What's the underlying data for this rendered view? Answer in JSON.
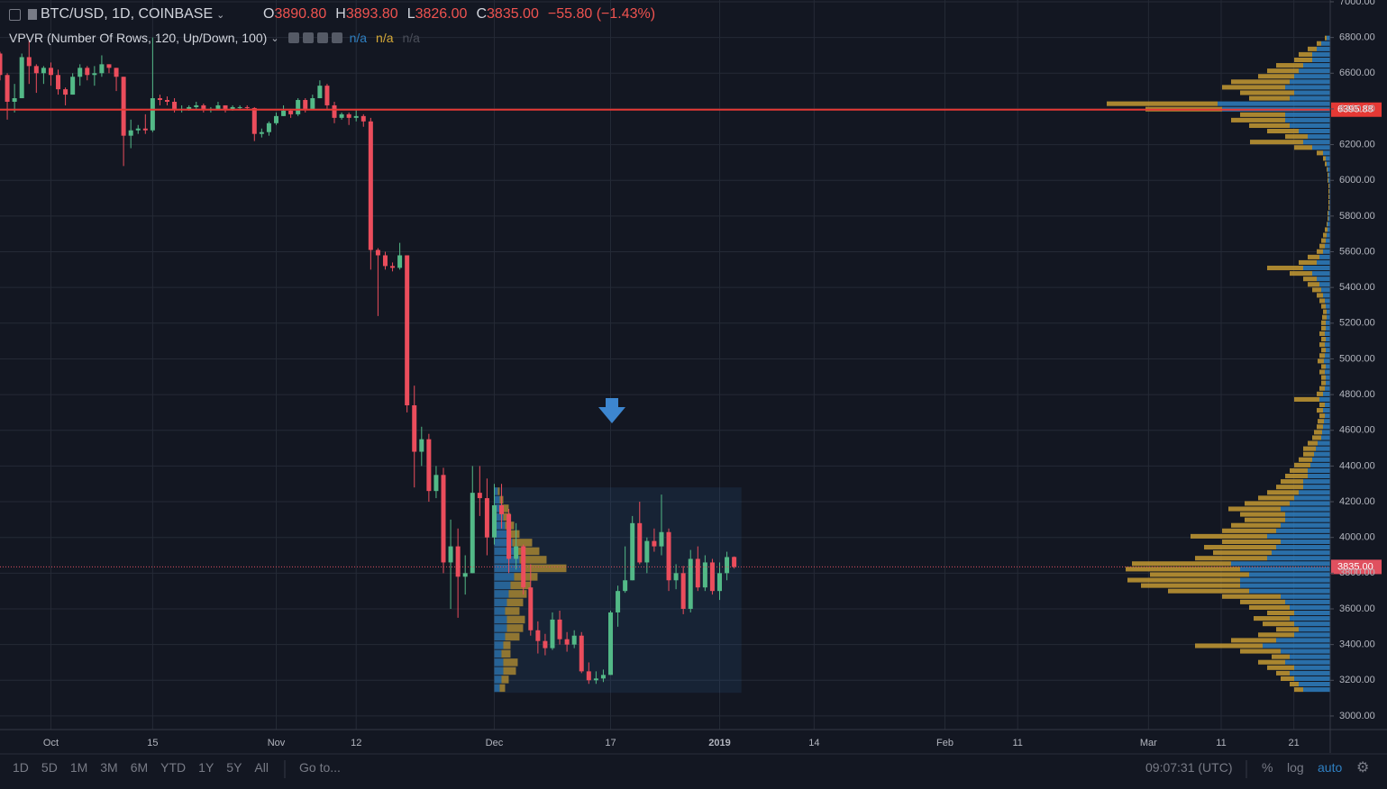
{
  "header": {
    "symbol": "BTC/USD, 1D, COINBASE",
    "ohlc": [
      {
        "key": "O",
        "value": "3890.80"
      },
      {
        "key": "H",
        "value": "3893.80"
      },
      {
        "key": "L",
        "value": "3826.00"
      },
      {
        "key": "C",
        "value": "3835.00"
      }
    ],
    "change": "−55.80 (−1.43%)",
    "indicator": "VPVR (Number Of Rows, 120, Up/Down, 100)",
    "indicator_values": [
      {
        "text": "n/a",
        "color": "#2f7fc1"
      },
      {
        "text": "n/a",
        "color": "#d6a937"
      },
      {
        "text": "n/a",
        "color": "#4a4e59"
      }
    ]
  },
  "toolbar": {
    "ranges": [
      "1D",
      "5D",
      "1M",
      "3M",
      "6M",
      "YTD",
      "1Y",
      "5Y",
      "All"
    ],
    "goto": "Go to...",
    "time": "09:07:31 (UTC)",
    "percent": "%",
    "log": "log",
    "auto": "auto"
  },
  "chart_data": {
    "type": "candlestick",
    "x": [
      "2018-09-24",
      "2018-09-25",
      "2018-09-26",
      "2018-09-27",
      "2018-09-28",
      "2018-09-29",
      "2018-09-30",
      "2018-10-01",
      "2018-10-02",
      "2018-10-03",
      "2018-10-04",
      "2018-10-05",
      "2018-10-06",
      "2018-10-07",
      "2018-10-08",
      "2018-10-09",
      "2018-10-10",
      "2018-10-11",
      "2018-10-12",
      "2018-10-13",
      "2018-10-14",
      "2018-10-15",
      "2018-10-16",
      "2018-10-17",
      "2018-10-18",
      "2018-10-19",
      "2018-10-20",
      "2018-10-21",
      "2018-10-22",
      "2018-10-23",
      "2018-10-24",
      "2018-10-25",
      "2018-10-26",
      "2018-10-27",
      "2018-10-28",
      "2018-10-29",
      "2018-10-30",
      "2018-10-31",
      "2018-11-01",
      "2018-11-02",
      "2018-11-03",
      "2018-11-04",
      "2018-11-05",
      "2018-11-06",
      "2018-11-07",
      "2018-11-08",
      "2018-11-09",
      "2018-11-10",
      "2018-11-11",
      "2018-11-12",
      "2018-11-13",
      "2018-11-14",
      "2018-11-15",
      "2018-11-16",
      "2018-11-17",
      "2018-11-18",
      "2018-11-19",
      "2018-11-20",
      "2018-11-21",
      "2018-11-22",
      "2018-11-23",
      "2018-11-24",
      "2018-11-25",
      "2018-11-26",
      "2018-11-27",
      "2018-11-28",
      "2018-11-29",
      "2018-11-30",
      "2018-12-01",
      "2018-12-02",
      "2018-12-03",
      "2018-12-04",
      "2018-12-05",
      "2018-12-06",
      "2018-12-07",
      "2018-12-08",
      "2018-12-09",
      "2018-12-10",
      "2018-12-11",
      "2018-12-12",
      "2018-12-13",
      "2018-12-14",
      "2018-12-15",
      "2018-12-16",
      "2018-12-17",
      "2018-12-18",
      "2018-12-19",
      "2018-12-20",
      "2018-12-21",
      "2018-12-22",
      "2018-12-23",
      "2018-12-24",
      "2018-12-25",
      "2018-12-26",
      "2018-12-27",
      "2018-12-28",
      "2018-12-29",
      "2018-12-30",
      "2018-12-31",
      "2019-01-01",
      "2019-01-02",
      "2019-01-03"
    ],
    "open": [
      6710,
      6590,
      6440,
      6460,
      6690,
      6640,
      6600,
      6630,
      6590,
      6510,
      6480,
      6580,
      6630,
      6590,
      6600,
      6650,
      6630,
      6580,
      6250,
      6280,
      6290,
      6280,
      6460,
      6450,
      6440,
      6400,
      6400,
      6410,
      6420,
      6400,
      6400,
      6420,
      6400,
      6410,
      6410,
      6405,
      6260,
      6270,
      6320,
      6360,
      6390,
      6370,
      6450,
      6400,
      6460,
      6530,
      6420,
      6350,
      6370,
      6350,
      6360,
      6330,
      5610,
      5580,
      5520,
      5510,
      5580,
      4740,
      4480,
      4550,
      4260,
      4350,
      3860,
      3950,
      3780,
      3800,
      4250,
      4220,
      4000,
      4180,
      4130,
      3880,
      3950,
      3720,
      3480,
      3420,
      3380,
      3540,
      3430,
      3400,
      3450,
      3250,
      3200,
      3210,
      3230,
      3580,
      3700,
      3760,
      4080,
      3860,
      3980,
      3950,
      4030,
      3760,
      3800,
      3600,
      3880,
      3720,
      3860,
      3700,
      3800,
      3890.8
    ],
    "high": [
      6720,
      6600,
      6540,
      6710,
      6780,
      6650,
      6640,
      6660,
      6620,
      6520,
      6600,
      6650,
      6640,
      6640,
      6700,
      6650,
      6630,
      6580,
      6340,
      6310,
      6370,
      6800,
      6480,
      6470,
      6460,
      6420,
      6420,
      6440,
      6430,
      6410,
      6440,
      6420,
      6420,
      6420,
      6420,
      6410,
      6290,
      6330,
      6380,
      6420,
      6400,
      6460,
      6460,
      6480,
      6560,
      6540,
      6440,
      6380,
      6380,
      6400,
      6370,
      6350,
      5620,
      5600,
      5540,
      5650,
      5580,
      4850,
      4620,
      4580,
      4400,
      4390,
      4100,
      4050,
      3900,
      4400,
      4400,
      4330,
      4300,
      4300,
      4160,
      4080,
      3960,
      3850,
      3530,
      3460,
      3580,
      3590,
      3470,
      3480,
      3470,
      3300,
      3250,
      3260,
      3590,
      3730,
      3950,
      4120,
      4200,
      4000,
      4050,
      4240,
      4050,
      3850,
      3840,
      3930,
      3950,
      3900,
      3880,
      3860,
      3920,
      3893.8
    ],
    "low": [
      6560,
      6340,
      6380,
      6460,
      6540,
      6490,
      6540,
      6530,
      6480,
      6420,
      6480,
      6530,
      6560,
      6530,
      6580,
      6600,
      6500,
      6080,
      6180,
      6260,
      6260,
      6270,
      6420,
      6420,
      6380,
      6380,
      6390,
      6400,
      6380,
      6380,
      6400,
      6380,
      6390,
      6400,
      6400,
      6220,
      6240,
      6250,
      6310,
      6360,
      6350,
      6360,
      6380,
      6400,
      6460,
      6400,
      6320,
      6340,
      6310,
      6330,
      6300,
      5500,
      5240,
      5500,
      5490,
      5500,
      4700,
      4280,
      4400,
      4200,
      4220,
      3800,
      3600,
      3550,
      3680,
      3800,
      4120,
      3900,
      3960,
      4050,
      3800,
      3820,
      3680,
      3450,
      3350,
      3340,
      3370,
      3400,
      3360,
      3380,
      3240,
      3180,
      3180,
      3190,
      3230,
      3500,
      3690,
      3760,
      3850,
      3800,
      3920,
      3900,
      3700,
      3710,
      3570,
      3580,
      3700,
      3700,
      3680,
      3650,
      3760,
      3826
    ],
    "close": [
      6590,
      6440,
      6460,
      6690,
      6640,
      6600,
      6630,
      6590,
      6510,
      6480,
      6580,
      6630,
      6590,
      6600,
      6650,
      6630,
      6580,
      6250,
      6280,
      6290,
      6280,
      6460,
      6450,
      6440,
      6400,
      6400,
      6410,
      6420,
      6400,
      6400,
      6420,
      6400,
      6410,
      6410,
      6405,
      6260,
      6270,
      6320,
      6360,
      6390,
      6370,
      6450,
      6400,
      6460,
      6530,
      6420,
      6350,
      6370,
      6350,
      6360,
      6330,
      5610,
      5580,
      5520,
      5510,
      5580,
      4740,
      4480,
      4550,
      4260,
      4350,
      3860,
      3950,
      3780,
      3800,
      4250,
      4220,
      4000,
      4180,
      4130,
      3880,
      3950,
      3720,
      3480,
      3420,
      3380,
      3540,
      3430,
      3400,
      3450,
      3250,
      3200,
      3210,
      3230,
      3580,
      3700,
      3760,
      4080,
      3860,
      3980,
      3950,
      4030,
      3760,
      3800,
      3600,
      3880,
      3720,
      3860,
      3700,
      3800,
      3890,
      3835
    ],
    "up_color": "#53b987",
    "down_color": "#eb4d5c",
    "xlim": [
      "2018-09-24",
      "2019-03-26"
    ],
    "xticks": [
      {
        "value": "2018-10-01",
        "label": "Oct"
      },
      {
        "value": "2018-10-15",
        "label": "15"
      },
      {
        "value": "2018-11-01",
        "label": "Nov"
      },
      {
        "value": "2018-11-12",
        "label": "12"
      },
      {
        "value": "2018-12-01",
        "label": "Dec"
      },
      {
        "value": "2018-12-17",
        "label": "17"
      },
      {
        "value": "2019-01-01",
        "label": "2019"
      },
      {
        "value": "2019-01-14",
        "label": "14"
      },
      {
        "value": "2019-02-01",
        "label": "Feb"
      },
      {
        "value": "2019-02-11",
        "label": "11"
      },
      {
        "value": "2019-03-01",
        "label": "Mar"
      },
      {
        "value": "2019-03-11",
        "label": "11"
      },
      {
        "value": "2019-03-21",
        "label": "21"
      }
    ],
    "ylim": [
      2924,
      7010
    ],
    "yticks": [
      {
        "value": 3000,
        "label": "3000.00"
      },
      {
        "value": 3200,
        "label": "3200.00"
      },
      {
        "value": 3400,
        "label": "3400.00"
      },
      {
        "value": 3600,
        "label": "3600.00"
      },
      {
        "value": 3800,
        "label": "3800.00"
      },
      {
        "value": 4000,
        "label": "4000.00"
      },
      {
        "value": 4200,
        "label": "4200.00"
      },
      {
        "value": 4400,
        "label": "4400.00"
      },
      {
        "value": 4600,
        "label": "4600.00"
      },
      {
        "value": 4800,
        "label": "4800.00"
      },
      {
        "value": 5000,
        "label": "5000.00"
      },
      {
        "value": 5200,
        "label": "5200.00"
      },
      {
        "value": 5400,
        "label": "5400.00"
      },
      {
        "value": 5600,
        "label": "5600.00"
      },
      {
        "value": 5800,
        "label": "5800.00"
      },
      {
        "value": 6000,
        "label": "6000.00"
      },
      {
        "value": 6200,
        "label": "6200.00"
      },
      {
        "value": 6400,
        "label": "6400.00"
      },
      {
        "value": 6600,
        "label": "6600.00"
      },
      {
        "value": 6800,
        "label": "6800.00"
      },
      {
        "value": 7000,
        "label": "7000.00"
      }
    ],
    "grid": true,
    "volume_profile": {
      "price_range": [
        3130,
        6810
      ],
      "series": [
        {
          "color": "#2f7fc1",
          "values": [
            30,
            35,
            40,
            45,
            40,
            50,
            45,
            55,
            75,
            60,
            40,
            35,
            40,
            45,
            40,
            45,
            50,
            55,
            90,
            100,
            100,
            90,
            100,
            110,
            70,
            65,
            60,
            55,
            70,
            60,
            55,
            50,
            50,
            55,
            45,
            40,
            35,
            30,
            30,
            25,
            25,
            22,
            20,
            18,
            16,
            14,
            10,
            9,
            8,
            7,
            6,
            8,
            6,
            12,
            8,
            6,
            5,
            5,
            6,
            5,
            7,
            6,
            5,
            6,
            5,
            6,
            5,
            5,
            4,
            4,
            5,
            6,
            8,
            10,
            12,
            15,
            20,
            30,
            15,
            12,
            8,
            6,
            5,
            4,
            3,
            3,
            2,
            2,
            1,
            1,
            1,
            1,
            1,
            2,
            2,
            3,
            4,
            5,
            8,
            20,
            30,
            25,
            35,
            45,
            50,
            50,
            120,
            125,
            45,
            40,
            50,
            45,
            40,
            35,
            30,
            20,
            20,
            15,
            10,
            4
          ]
        },
        {
          "color": "#c59a32",
          "values": [
            10,
            10,
            15,
            15,
            30,
            30,
            20,
            45,
            75,
            50,
            40,
            25,
            35,
            40,
            30,
            45,
            50,
            65,
            90,
            110,
            125,
            110,
            127,
            110,
            80,
            65,
            80,
            65,
            85,
            60,
            55,
            45,
            50,
            58,
            50,
            40,
            35,
            30,
            25,
            25,
            20,
            18,
            15,
            12,
            14,
            11,
            10,
            9,
            7,
            7,
            6,
            7,
            6,
            28,
            7,
            6,
            5,
            5,
            6,
            5,
            7,
            6,
            5,
            6,
            5,
            6,
            5,
            5,
            5,
            4,
            5,
            6,
            7,
            10,
            13,
            15,
            25,
            40,
            20,
            13,
            7,
            6,
            5,
            4,
            3,
            1,
            1,
            1,
            1,
            1,
            1,
            1,
            1,
            1,
            1,
            1,
            2,
            3,
            7,
            20,
            59,
            25,
            35,
            45,
            60,
            50,
            85,
            123,
            45,
            60,
            70,
            65,
            40,
            35,
            30,
            20,
            15,
            10,
            5,
            2
          ]
        }
      ]
    },
    "fixed_range_profile": {
      "x_range": [
        "2018-12-01",
        "2019-01-04"
      ],
      "price_range": [
        3130,
        4280
      ],
      "series": [
        {
          "color": "#2f7fc1",
          "values": [
            6,
            8,
            10,
            10,
            8,
            10,
            12,
            14,
            14,
            12,
            14,
            16,
            18,
            22,
            30,
            28,
            24,
            20,
            14,
            12,
            10,
            8,
            6,
            4
          ]
        },
        {
          "color": "#c59a32",
          "values": [
            6,
            8,
            14,
            16,
            10,
            8,
            16,
            18,
            20,
            16,
            18,
            20,
            22,
            26,
            50,
            30,
            26,
            22,
            14,
            10,
            8,
            8,
            4,
            2
          ]
        }
      ]
    },
    "price_lines": [
      {
        "value": 6395.88,
        "label": "6395.88",
        "color": "#e53935",
        "style": "solid"
      },
      {
        "value": 3835,
        "label": "3835.00",
        "color": "#e0505f",
        "style": "dotted"
      }
    ]
  }
}
